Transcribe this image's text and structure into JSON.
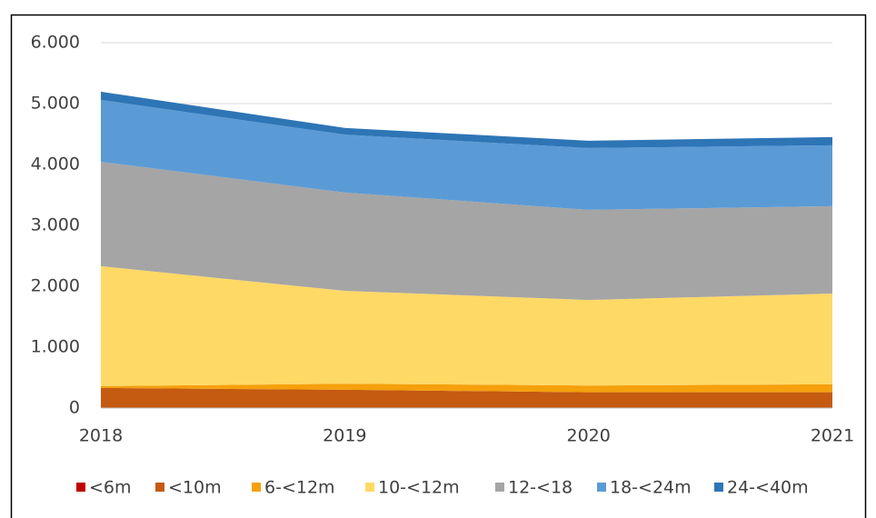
{
  "chart_data": {
    "type": "stacked_area",
    "categories": [
      "2018",
      "2019",
      "2020",
      "2021"
    ],
    "series": [
      {
        "name": "<6m",
        "color": "#c00000",
        "values": [
          0,
          0,
          0,
          0
        ]
      },
      {
        "name": "<10m",
        "color": "#c55a11",
        "values": [
          330,
          300,
          260,
          260
        ]
      },
      {
        "name": "6-<12m",
        "color": "#f5a00c",
        "values": [
          30,
          100,
          110,
          130
        ]
      },
      {
        "name": "10-<12m",
        "color": "#ffd966",
        "values": [
          1970,
          1525,
          1405,
          1490
        ]
      },
      {
        "name": "12-<18",
        "color": "#a5a5a5",
        "values": [
          1715,
          1615,
          1480,
          1435
        ]
      },
      {
        "name": "18-<24m",
        "color": "#5b9bd5",
        "values": [
          1015,
          950,
          1015,
          1000
        ]
      },
      {
        "name": "24-<40m",
        "color": "#2e75b6",
        "values": [
          135,
          110,
          120,
          135
        ]
      }
    ],
    "ylim": [
      0,
      6000
    ],
    "yticks": [
      0,
      {
        "value": 1000,
        "label": "1.000"
      },
      {
        "value": 2000,
        "label": "2.000"
      },
      {
        "value": 3000,
        "label": "3.000"
      },
      {
        "value": 4000,
        "label": "4.000"
      },
      {
        "value": 5000,
        "label": "5.000"
      },
      {
        "value": 6000,
        "label": "6.000"
      }
    ],
    "grid": true,
    "legend": "bottom"
  }
}
